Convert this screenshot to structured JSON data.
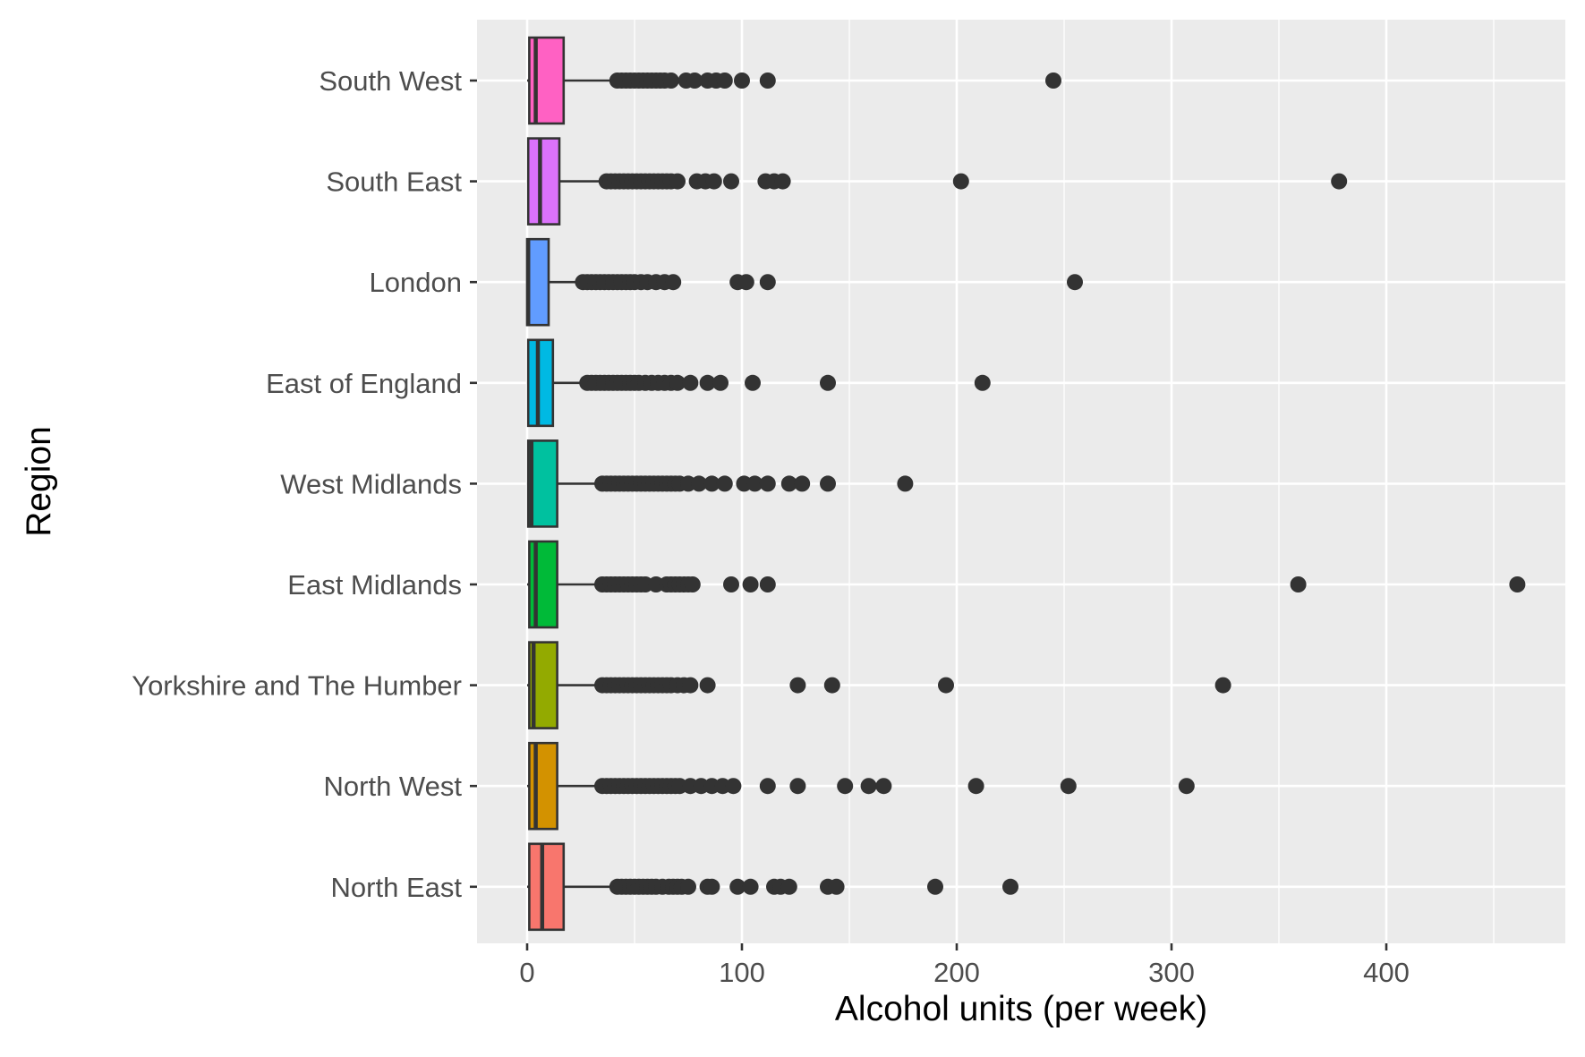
{
  "chart_data": {
    "type": "boxplot",
    "orientation": "horizontal",
    "title": "",
    "xlabel": "Alcohol units (per week)",
    "ylabel": "Region",
    "xlim": [
      -23,
      483
    ],
    "xticks": [
      0,
      100,
      200,
      300,
      400
    ],
    "grid": true,
    "legend": "none",
    "categories": [
      "North East",
      "North West",
      "Yorkshire and The Humber",
      "East Midlands",
      "West Midlands",
      "East of England",
      "London",
      "South East",
      "South West"
    ],
    "series": [
      {
        "category": "North East",
        "color": "#F8766D",
        "min": 0,
        "q1": 1,
        "median": 7,
        "q3": 17,
        "max": 40,
        "outliers": [
          42,
          44,
          46,
          48,
          50,
          52,
          54,
          56,
          58,
          60,
          63,
          66,
          68,
          70,
          72,
          75,
          84,
          86,
          98,
          104,
          115,
          118,
          122,
          140,
          144,
          190,
          225
        ]
      },
      {
        "category": "North West",
        "color": "#D39200",
        "min": 0,
        "q1": 1,
        "median": 4,
        "q3": 14,
        "max": 34,
        "outliers": [
          35,
          37,
          39,
          41,
          43,
          45,
          47,
          49,
          51,
          53,
          55,
          57,
          59,
          61,
          63,
          65,
          67,
          69,
          71,
          76,
          81,
          86,
          91,
          96,
          112,
          126,
          148,
          159,
          166,
          209,
          252,
          307
        ]
      },
      {
        "category": "Yorkshire and The Humber",
        "color": "#93AA00",
        "min": 0,
        "q1": 1,
        "median": 3,
        "q3": 14,
        "max": 34,
        "outliers": [
          35,
          37,
          39,
          41,
          43,
          45,
          47,
          49,
          51,
          53,
          55,
          57,
          59,
          61,
          63,
          65,
          67,
          70,
          73,
          76,
          84,
          126,
          142,
          195,
          324
        ]
      },
      {
        "category": "East Midlands",
        "color": "#00BA38",
        "min": 0,
        "q1": 1,
        "median": 4,
        "q3": 14,
        "max": 34,
        "outliers": [
          35,
          37,
          39,
          41,
          43,
          45,
          47,
          49,
          51,
          53,
          55,
          60,
          65,
          67,
          69,
          71,
          73,
          75,
          77,
          95,
          104,
          112,
          359,
          461
        ]
      },
      {
        "category": "West Midlands",
        "color": "#00C19F",
        "min": 0,
        "q1": 0.5,
        "median": 2,
        "q3": 14,
        "max": 34,
        "outliers": [
          35,
          37,
          39,
          41,
          43,
          45,
          47,
          49,
          51,
          53,
          55,
          57,
          59,
          61,
          63,
          65,
          67,
          69,
          71,
          75,
          80,
          86,
          92,
          101,
          106,
          112,
          122,
          128,
          140,
          176
        ]
      },
      {
        "category": "East of England",
        "color": "#00B9E3",
        "min": 0,
        "q1": 0.5,
        "median": 5,
        "q3": 12,
        "max": 27,
        "outliers": [
          28,
          30,
          32,
          34,
          36,
          38,
          40,
          42,
          44,
          46,
          48,
          50,
          52,
          55,
          58,
          61,
          64,
          67,
          70,
          76,
          84,
          90,
          105,
          140,
          212
        ]
      },
      {
        "category": "London",
        "color": "#619CFF",
        "min": 0,
        "q1": 0,
        "median": 0.5,
        "q3": 10,
        "max": 24,
        "outliers": [
          26,
          28,
          30,
          32,
          34,
          36,
          38,
          40,
          42,
          44,
          46,
          48,
          50,
          53,
          56,
          60,
          64,
          68,
          98,
          102,
          112,
          255
        ]
      },
      {
        "category": "South East",
        "color": "#DB72FB",
        "min": 0,
        "q1": 0.5,
        "median": 6,
        "q3": 15,
        "max": 36,
        "outliers": [
          37,
          39,
          41,
          43,
          45,
          47,
          49,
          51,
          53,
          55,
          57,
          59,
          61,
          63,
          65,
          67,
          70,
          79,
          83,
          87,
          95,
          111,
          115,
          119,
          202,
          378
        ]
      },
      {
        "category": "South West",
        "color": "#FF61C3",
        "min": 0,
        "q1": 1,
        "median": 4,
        "q3": 17,
        "max": 40,
        "outliers": [
          42,
          44,
          46,
          48,
          50,
          52,
          54,
          56,
          58,
          60,
          62,
          64,
          67,
          74,
          78,
          84,
          88,
          92,
          100,
          112,
          245
        ]
      }
    ]
  }
}
